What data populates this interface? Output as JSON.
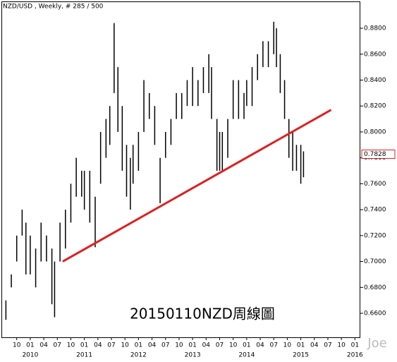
{
  "chart_data": {
    "type": "range-bar",
    "title": "NZD/USD , Weekly, # 285 / 500",
    "annotation": "20150110NZD周線圖",
    "watermark": "Joe",
    "last_price": {
      "value": 0.7828,
      "label": "0.7828"
    },
    "color": "#000000",
    "x": [
      2009.55,
      2009.65,
      2009.75,
      2009.85,
      2009.92,
      2010.0,
      2010.1,
      2010.2,
      2010.3,
      2010.4,
      2010.45,
      2010.55,
      2010.65,
      2010.75,
      2010.85,
      2010.95,
      2011.0,
      2011.1,
      2011.2,
      2011.3,
      2011.4,
      2011.47,
      2011.55,
      2011.62,
      2011.7,
      2011.78,
      2011.85,
      2011.9,
      2012.0,
      2012.1,
      2012.2,
      2012.3,
      2012.4,
      2012.5,
      2012.6,
      2012.7,
      2012.8,
      2012.9,
      2013.0,
      2013.1,
      2013.2,
      2013.3,
      2013.35,
      2013.45,
      2013.5,
      2013.55,
      2013.65,
      2013.75,
      2013.85,
      2013.95,
      2014.0,
      2014.1,
      2014.2,
      2014.3,
      2014.4,
      2014.5,
      2014.55,
      2014.62,
      2014.7,
      2014.78,
      2014.85,
      2014.92,
      2015.0,
      2015.05
    ],
    "high": [
      0.67,
      0.69,
      0.72,
      0.74,
      0.73,
      0.72,
      0.71,
      0.73,
      0.72,
      0.71,
      0.7,
      0.73,
      0.74,
      0.76,
      0.78,
      0.77,
      0.77,
      0.77,
      0.75,
      0.8,
      0.81,
      0.82,
      0.884,
      0.85,
      0.82,
      0.79,
      0.78,
      0.79,
      0.8,
      0.84,
      0.83,
      0.82,
      0.78,
      0.8,
      0.81,
      0.83,
      0.83,
      0.84,
      0.85,
      0.84,
      0.85,
      0.86,
      0.85,
      0.81,
      0.8,
      0.8,
      0.81,
      0.84,
      0.84,
      0.83,
      0.84,
      0.85,
      0.86,
      0.87,
      0.87,
      0.885,
      0.88,
      0.86,
      0.84,
      0.81,
      0.8,
      0.79,
      0.79,
      0.785
    ],
    "low": [
      0.655,
      0.68,
      0.7,
      0.72,
      0.69,
      0.69,
      0.68,
      0.7,
      0.7,
      0.667,
      0.657,
      0.7,
      0.71,
      0.73,
      0.75,
      0.75,
      0.74,
      0.73,
      0.711,
      0.76,
      0.78,
      0.79,
      0.83,
      0.8,
      0.77,
      0.75,
      0.74,
      0.76,
      0.77,
      0.8,
      0.81,
      0.79,
      0.745,
      0.78,
      0.79,
      0.81,
      0.81,
      0.82,
      0.82,
      0.82,
      0.83,
      0.83,
      0.81,
      0.77,
      0.77,
      0.77,
      0.78,
      0.81,
      0.81,
      0.81,
      0.82,
      0.82,
      0.84,
      0.85,
      0.85,
      0.86,
      0.85,
      0.83,
      0.81,
      0.78,
      0.77,
      0.77,
      0.76,
      0.765
    ],
    "trendline": {
      "x": [
        2010.6,
        2015.56
      ],
      "values": [
        0.7,
        0.817
      ],
      "color": "#e02020"
    },
    "xlim": [
      2009.48,
      2016.1
    ],
    "xticks": [
      {
        "value": 2009.75,
        "label": "10"
      },
      {
        "value": 2010.0,
        "label": "01"
      },
      {
        "value": 2010.25,
        "label": "04"
      },
      {
        "value": 2010.5,
        "label": "07"
      },
      {
        "value": 2010.75,
        "label": "10"
      },
      {
        "value": 2011.0,
        "label": "01"
      },
      {
        "value": 2011.25,
        "label": "04"
      },
      {
        "value": 2011.5,
        "label": "07"
      },
      {
        "value": 2011.75,
        "label": "10"
      },
      {
        "value": 2012.0,
        "label": "01"
      },
      {
        "value": 2012.25,
        "label": "04"
      },
      {
        "value": 2012.5,
        "label": "07"
      },
      {
        "value": 2012.75,
        "label": "10"
      },
      {
        "value": 2013.0,
        "label": "01"
      },
      {
        "value": 2013.25,
        "label": "04"
      },
      {
        "value": 2013.5,
        "label": "07"
      },
      {
        "value": 2013.75,
        "label": "10"
      },
      {
        "value": 2014.0,
        "label": "01"
      },
      {
        "value": 2014.25,
        "label": "04"
      },
      {
        "value": 2014.5,
        "label": "07"
      },
      {
        "value": 2014.75,
        "label": "10"
      },
      {
        "value": 2015.0,
        "label": "01"
      },
      {
        "value": 2015.25,
        "label": "04"
      },
      {
        "value": 2015.5,
        "label": "07"
      },
      {
        "value": 2015.75,
        "label": "10"
      },
      {
        "value": 2016.0,
        "label": "01"
      }
    ],
    "year_ticks": [
      2010,
      2011,
      2012,
      2013,
      2014,
      2015,
      2016
    ],
    "ylim": [
      0.6415,
      0.9018
    ],
    "yticks": [
      {
        "value": 0.66,
        "label": "0.6600"
      },
      {
        "value": 0.68,
        "label": "0.6800"
      },
      {
        "value": 0.7,
        "label": "0.7000"
      },
      {
        "value": 0.72,
        "label": "0.7200"
      },
      {
        "value": 0.74,
        "label": "0.7400"
      },
      {
        "value": 0.76,
        "label": "0.7600"
      },
      {
        "value": 0.78,
        "label": "0.7800"
      },
      {
        "value": 0.8,
        "label": "0.8000"
      },
      {
        "value": 0.82,
        "label": "0.8200"
      },
      {
        "value": 0.84,
        "label": "0.8400"
      },
      {
        "value": 0.86,
        "label": "0.8600"
      },
      {
        "value": 0.88,
        "label": "0.8800"
      }
    ]
  }
}
